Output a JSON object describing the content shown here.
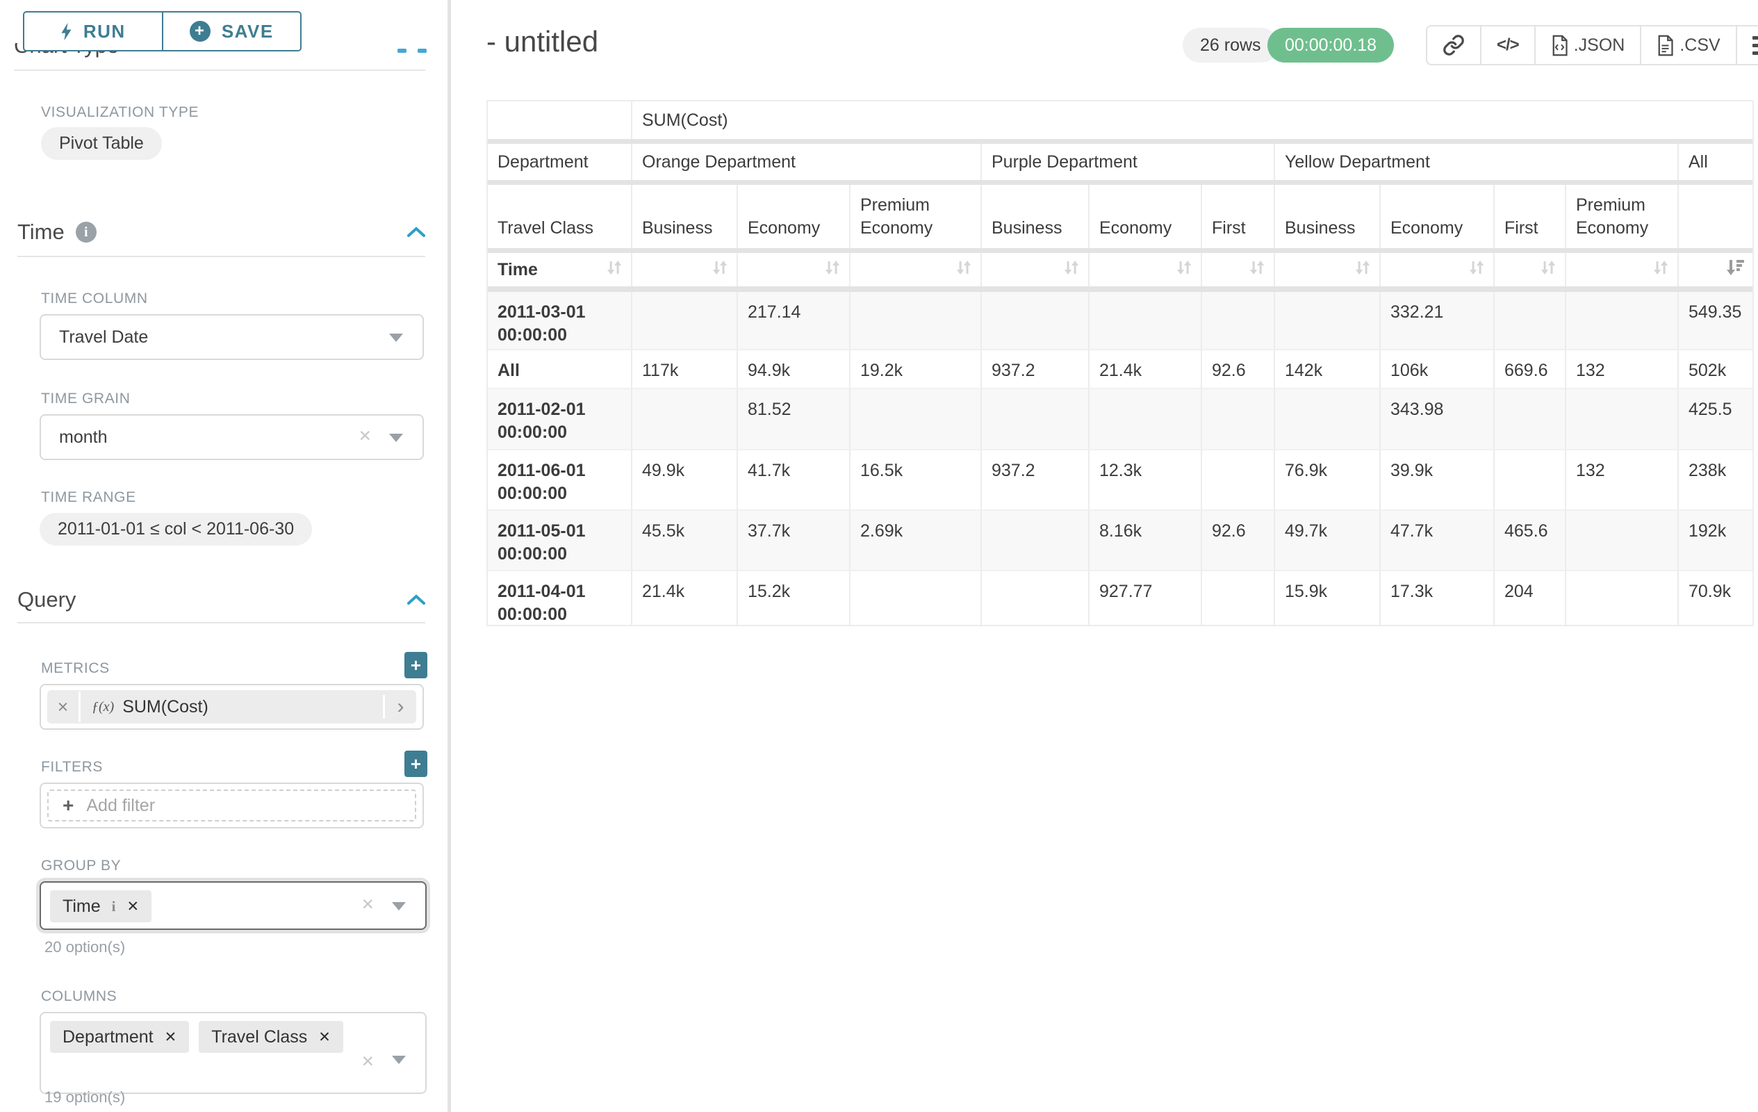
{
  "sidebar": {
    "run_button": "RUN",
    "save_button": "SAVE",
    "scrolled_section_title": "Chart Type",
    "visualization": {
      "label": "VISUALIZATION TYPE",
      "value": "Pivot Table"
    },
    "time": {
      "title": "Time",
      "time_column": {
        "label": "TIME COLUMN",
        "value": "Travel Date"
      },
      "time_grain": {
        "label": "TIME GRAIN",
        "value": "month"
      },
      "time_range": {
        "label": "TIME RANGE",
        "value": "2011-01-01 ≤ col < 2011-06-30"
      }
    },
    "query": {
      "title": "Query",
      "metrics": {
        "label": "METRICS",
        "fx": "ƒ(x)",
        "value": "SUM(Cost)"
      },
      "filters": {
        "label": "FILTERS",
        "placeholder": "Add filter"
      },
      "group_by": {
        "label": "GROUP BY",
        "tags": [
          "Time"
        ],
        "options_hint": "20 option(s)"
      },
      "columns": {
        "label": "COLUMNS",
        "tags": [
          "Department",
          "Travel Class"
        ],
        "options_hint": "19 option(s)"
      }
    }
  },
  "header": {
    "title": "- untitled",
    "row_count_badge": "26 rows",
    "timer_badge": "00:00:00.18",
    "toolbar": [
      {
        "icon": "link-icon",
        "label": ""
      },
      {
        "icon": "code-icon",
        "label": ""
      },
      {
        "icon": "file-json-icon",
        "label": ".JSON"
      },
      {
        "icon": "file-csv-icon",
        "label": ".CSV"
      },
      {
        "icon": "hamburger-icon",
        "label": ""
      }
    ]
  },
  "chart_data": {
    "type": "table",
    "metric": "SUM(Cost)",
    "row_dimension": "Time",
    "column_dimensions": [
      "Department",
      "Travel Class"
    ],
    "sorted_column": "All",
    "sort_direction": "desc",
    "column_groups": [
      {
        "label": "Orange Department",
        "columns": [
          "Business",
          "Economy",
          "Premium Economy"
        ]
      },
      {
        "label": "Purple Department",
        "columns": [
          "Business",
          "Economy",
          "First"
        ]
      },
      {
        "label": "Yellow Department",
        "columns": [
          "Business",
          "Economy",
          "First",
          "Premium Economy"
        ]
      },
      {
        "label": "All",
        "columns": [
          ""
        ]
      }
    ],
    "rows": [
      {
        "label": "2011-03-01 00:00:00",
        "values": [
          "",
          "217.14",
          "",
          "",
          "",
          "",
          "",
          "332.21",
          "",
          "",
          "549.35"
        ]
      },
      {
        "label": "All",
        "values": [
          "117k",
          "94.9k",
          "19.2k",
          "937.2",
          "21.4k",
          "92.6",
          "142k",
          "106k",
          "669.6",
          "132",
          "502k"
        ]
      },
      {
        "label": "2011-02-01 00:00:00",
        "values": [
          "",
          "81.52",
          "",
          "",
          "",
          "",
          "",
          "343.98",
          "",
          "",
          "425.5"
        ]
      },
      {
        "label": "2011-06-01 00:00:00",
        "values": [
          "49.9k",
          "41.7k",
          "16.5k",
          "937.2",
          "12.3k",
          "",
          "76.9k",
          "39.9k",
          "",
          "132",
          "238k"
        ]
      },
      {
        "label": "2011-05-01 00:00:00",
        "values": [
          "45.5k",
          "37.7k",
          "2.69k",
          "",
          "8.16k",
          "92.6",
          "49.7k",
          "47.7k",
          "465.6",
          "",
          "192k"
        ]
      },
      {
        "label": "2011-04-01 00:00:00",
        "values": [
          "21.4k",
          "15.2k",
          "",
          "",
          "927.77",
          "",
          "15.9k",
          "17.3k",
          "204",
          "",
          "70.9k"
        ]
      }
    ]
  }
}
